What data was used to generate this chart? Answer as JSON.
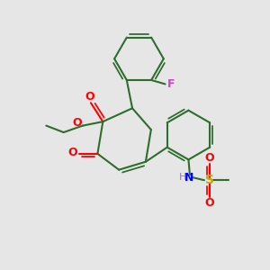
{
  "background_color": "#e6e6e6",
  "bond_color": "#2d6e2d",
  "bond_width": 1.5,
  "figsize": [
    3.0,
    3.0
  ],
  "dpi": 100,
  "xlim": [
    0,
    10
  ],
  "ylim": [
    0,
    10
  ]
}
